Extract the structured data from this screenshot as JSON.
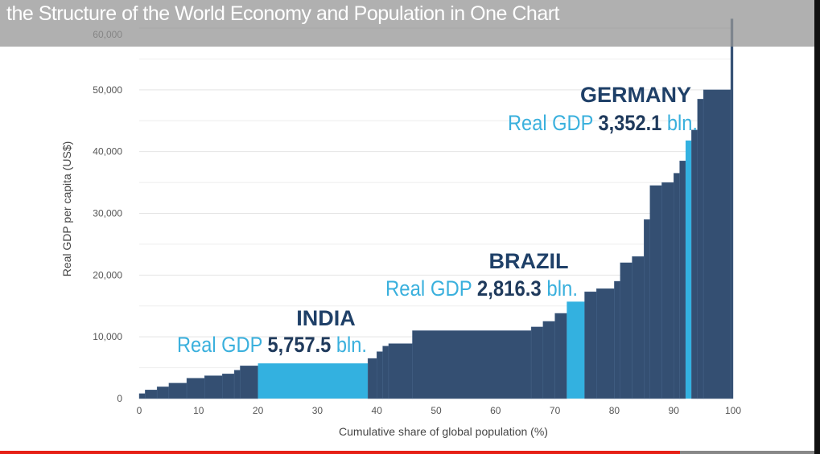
{
  "video": {
    "title": "the Structure of the World Economy and Population in One Chart",
    "progress": 0.835
  },
  "chart_data": {
    "type": "bar",
    "xlabel": "Cumulative share of global population (%)",
    "ylabel": "Real GDP per capita (US$)",
    "xlim": [
      0,
      100
    ],
    "ylim": [
      0,
      60000
    ],
    "xticks": [
      "0",
      "10",
      "20",
      "30",
      "40",
      "50",
      "60",
      "70",
      "80",
      "90",
      "100"
    ],
    "yticks": [
      "0",
      "10,000",
      "20,000",
      "30,000",
      "40,000",
      "50,000",
      "60,000"
    ],
    "grid": "horizontal",
    "colors": {
      "default": "#344f72",
      "highlight": "#33b1e0"
    },
    "bars": [
      {
        "x0": 0,
        "x1": 1,
        "y": 800
      },
      {
        "x0": 1,
        "x1": 3,
        "y": 1400
      },
      {
        "x0": 3,
        "x1": 5,
        "y": 1900
      },
      {
        "x0": 5,
        "x1": 8,
        "y": 2500
      },
      {
        "x0": 8,
        "x1": 11,
        "y": 3300
      },
      {
        "x0": 11,
        "x1": 14,
        "y": 3700
      },
      {
        "x0": 14,
        "x1": 16,
        "y": 4000
      },
      {
        "x0": 16,
        "x1": 17,
        "y": 4600
      },
      {
        "x0": 17,
        "x1": 20,
        "y": 5300
      },
      {
        "x0": 20,
        "x1": 38.5,
        "y": 5700,
        "highlight": true
      },
      {
        "x0": 38.5,
        "x1": 40,
        "y": 6500
      },
      {
        "x0": 40,
        "x1": 41,
        "y": 7600
      },
      {
        "x0": 41,
        "x1": 42,
        "y": 8500
      },
      {
        "x0": 42,
        "x1": 46,
        "y": 8900
      },
      {
        "x0": 46,
        "x1": 66,
        "y": 11000
      },
      {
        "x0": 66,
        "x1": 68,
        "y": 11600
      },
      {
        "x0": 68,
        "x1": 70,
        "y": 12500
      },
      {
        "x0": 70,
        "x1": 72,
        "y": 13800
      },
      {
        "x0": 72,
        "x1": 75,
        "y": 15700,
        "highlight": true
      },
      {
        "x0": 75,
        "x1": 77,
        "y": 17300
      },
      {
        "x0": 77,
        "x1": 80,
        "y": 17800
      },
      {
        "x0": 80,
        "x1": 81,
        "y": 19000
      },
      {
        "x0": 81,
        "x1": 83,
        "y": 22000
      },
      {
        "x0": 83,
        "x1": 85,
        "y": 23000
      },
      {
        "x0": 85,
        "x1": 86,
        "y": 29000
      },
      {
        "x0": 86,
        "x1": 88,
        "y": 34500
      },
      {
        "x0": 88,
        "x1": 90,
        "y": 35000
      },
      {
        "x0": 90,
        "x1": 91,
        "y": 36500
      },
      {
        "x0": 91,
        "x1": 92,
        "y": 38500
      },
      {
        "x0": 92,
        "x1": 93,
        "y": 41800,
        "highlight": true
      },
      {
        "x0": 93,
        "x1": 94,
        "y": 43500
      },
      {
        "x0": 94,
        "x1": 95,
        "y": 48500
      },
      {
        "x0": 95,
        "x1": 99.6,
        "y": 50000
      },
      {
        "x0": 99.6,
        "x1": 100,
        "y": 61500
      }
    ],
    "annotations": [
      {
        "country": "INDIA",
        "label": "Real GDP",
        "value": "5,757.5",
        "unit": "bln."
      },
      {
        "country": "BRAZIL",
        "label": "Real GDP",
        "value": "2,816.3",
        "unit": "bln."
      },
      {
        "country": "GERMANY",
        "label": "Real GDP",
        "value": "3,352.1",
        "unit": "bln."
      }
    ]
  }
}
